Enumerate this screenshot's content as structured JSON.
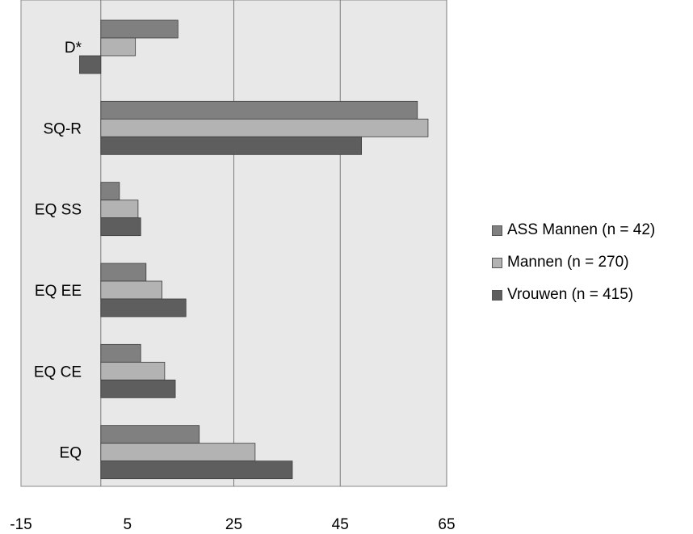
{
  "chart_data": {
    "type": "bar",
    "orientation": "horizontal",
    "title": "",
    "xlabel": "",
    "ylabel": "",
    "xlim": [
      -15,
      65
    ],
    "xticks": [
      -15,
      5,
      25,
      45,
      65
    ],
    "xtick_labels": [
      "-15",
      "5",
      "25",
      "45",
      "65"
    ],
    "gridlines_at": [
      0,
      25,
      45,
      65
    ],
    "grid": true,
    "plot_background": "#e8e8e8",
    "legend_position": "right",
    "categories": [
      "D*",
      "SQ-R",
      "EQ SS",
      "EQ EE",
      "EQ CE",
      "EQ"
    ],
    "series": [
      {
        "name": "ASS Mannen (n = 42)",
        "color": "#808080",
        "values": [
          14.5,
          59.5,
          3.5,
          8.5,
          7.5,
          18.5
        ]
      },
      {
        "name": "Mannen (n = 270)",
        "color": "#b3b3b3",
        "values": [
          6.5,
          61.5,
          7,
          11.5,
          12,
          29
        ]
      },
      {
        "name": "Vrouwen (n = 415)",
        "color": "#5e5e5e",
        "values": [
          -4,
          49,
          7.5,
          16,
          14,
          36
        ]
      }
    ]
  }
}
